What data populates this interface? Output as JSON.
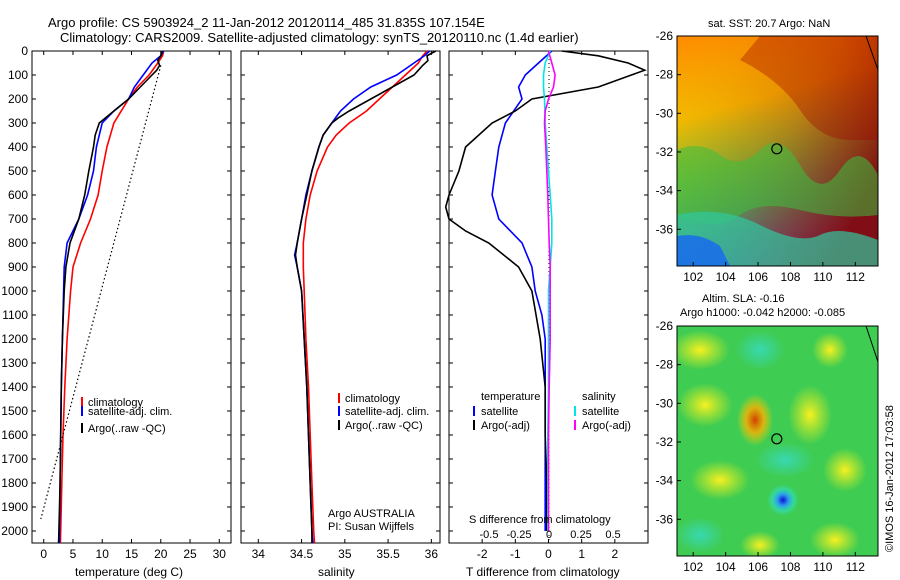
{
  "header": {
    "line1": "Argo profile: CS 5903924_2 11-Jan-2012 20120114_485 31.835S 107.154E",
    "line2": "Climatology: CARS2009. Satellite-adjusted climatology: synTS_20120110.nc (1.4d earlier)"
  },
  "colors": {
    "climatology": "#ff0000",
    "satellite": "#0000ff",
    "argo": "#000000",
    "sat_salinity": "#00e5e5",
    "argo_salinity": "#ff00ff"
  },
  "depth_ticks": [
    "0",
    "100",
    "200",
    "300",
    "400",
    "500",
    "600",
    "700",
    "800",
    "900",
    "1000",
    "1100",
    "1200",
    "1300",
    "1400",
    "1500",
    "1600",
    "1700",
    "1800",
    "1900",
    "2000"
  ],
  "chart_data": [
    {
      "type": "line",
      "panel": "temperature",
      "xlabel": "temperature (deg C)",
      "xlim": [
        -2,
        32
      ],
      "ylim": [
        2050,
        0
      ],
      "x_ticks": [
        "0",
        "5",
        "10",
        "15",
        "20",
        "25",
        "30"
      ],
      "legend": [
        "climatology",
        "satellite-adj. clim.",
        "Argo(..raw -QC)"
      ],
      "series": [
        {
          "name": "climatology",
          "color": "red",
          "depth": [
            0,
            20,
            50,
            100,
            150,
            200,
            300,
            400,
            500,
            600,
            700,
            800,
            900,
            1000,
            1200,
            1400,
            1600,
            1800,
            2000,
            2050
          ],
          "values": [
            20.5,
            20.3,
            19.5,
            18,
            16,
            14.5,
            12,
            10.8,
            10,
            9.3,
            8,
            6.3,
            5,
            4.6,
            4,
            3.6,
            3.3,
            3.1,
            2.9,
            2.85
          ]
        },
        {
          "name": "satellite-adj. clim.",
          "color": "blue",
          "depth": [
            0,
            20,
            50,
            100,
            150,
            200,
            250,
            300,
            400,
            500,
            600,
            700,
            800,
            900,
            1000,
            1200,
            1400,
            1600,
            1800,
            2000,
            2050
          ],
          "values": [
            20.5,
            20,
            18.5,
            17,
            15.5,
            14.5,
            12,
            10,
            9,
            8.5,
            7.5,
            6,
            4,
            3.5,
            3.4,
            3.2,
            3,
            2.9,
            2.8,
            2.7,
            2.7
          ]
        },
        {
          "name": "Argo(..raw -QC)",
          "color": "black",
          "depth": [
            0,
            20,
            40,
            60,
            80,
            100,
            150,
            200,
            250,
            300,
            350,
            400,
            500,
            600,
            700,
            800,
            900,
            1000,
            1200,
            1400,
            1600,
            1800,
            2000,
            2050
          ],
          "values": [
            20.3,
            20,
            19.5,
            19.8,
            19.3,
            18.5,
            16.5,
            14.5,
            12,
            9.5,
            8.8,
            8.5,
            7.7,
            7,
            6,
            4.5,
            3.8,
            3.5,
            3.2,
            3,
            2.9,
            2.8,
            2.6,
            2.55
          ]
        },
        {
          "name": "dotted",
          "color": "black",
          "depth": [
            60,
            1950
          ],
          "values": [
            20,
            -0.5
          ]
        }
      ]
    },
    {
      "type": "line",
      "panel": "salinity",
      "xlabel": "salinity",
      "xlim": [
        33.8,
        36.1
      ],
      "ylim": [
        2050,
        0
      ],
      "x_ticks": [
        "34",
        "34.5",
        "35",
        "35.5",
        "36"
      ],
      "legend": [
        "climatology",
        "satellite-adj. clim.",
        "Argo(..raw -QC)"
      ],
      "annotations": [
        "Argo AUSTRALIA",
        "PI: Susan Wijffels"
      ],
      "series": [
        {
          "name": "climatology",
          "color": "red",
          "depth": [
            0,
            20,
            50,
            100,
            150,
            200,
            250,
            300,
            350,
            400,
            500,
            600,
            700,
            800,
            900,
            1000,
            1200,
            1400,
            1600,
            1800,
            2000,
            2050
          ],
          "values": [
            35.95,
            35.9,
            35.85,
            35.7,
            35.55,
            35.4,
            35.25,
            35.05,
            34.9,
            34.8,
            34.68,
            34.6,
            34.55,
            34.52,
            34.52,
            34.53,
            34.55,
            34.58,
            34.6,
            34.62,
            34.64,
            34.65
          ]
        },
        {
          "name": "satellite-adj. clim.",
          "color": "blue",
          "depth": [
            0,
            20,
            50,
            100,
            150,
            200,
            250,
            300,
            350,
            400,
            500,
            600,
            700,
            800,
            850,
            900,
            1000,
            1200,
            1400,
            1600,
            1800,
            2000,
            2050
          ],
          "values": [
            35.98,
            35.92,
            35.8,
            35.6,
            35.3,
            35.1,
            34.95,
            34.85,
            34.75,
            34.7,
            34.62,
            34.55,
            34.5,
            34.45,
            34.42,
            34.45,
            34.5,
            34.53,
            34.56,
            34.58,
            34.6,
            34.62,
            34.63
          ]
        },
        {
          "name": "Argo(..raw -QC)",
          "color": "black",
          "depth": [
            0,
            20,
            40,
            60,
            80,
            100,
            150,
            200,
            250,
            280,
            300,
            350,
            400,
            500,
            600,
            700,
            800,
            850,
            900,
            1000,
            1200,
            1400,
            1600,
            1800,
            2000,
            2050
          ],
          "values": [
            36.05,
            35.95,
            35.96,
            35.9,
            35.85,
            35.8,
            35.55,
            35.3,
            35.05,
            34.92,
            34.85,
            34.75,
            34.7,
            34.62,
            34.56,
            34.5,
            34.45,
            34.43,
            34.45,
            34.5,
            34.53,
            34.56,
            34.58,
            34.6,
            34.62,
            34.62
          ]
        }
      ]
    },
    {
      "type": "line",
      "panel": "difference",
      "xlabel": "T difference from climatology",
      "xlabel_top": "S difference from climatology",
      "xlim": [
        -3,
        3
      ],
      "ylim": [
        2050,
        0
      ],
      "x_ticks": [
        "-2",
        "-1",
        "0",
        "1",
        "2"
      ],
      "s_ticks": [
        "-0.5",
        "-0.25",
        "0",
        "0.25",
        "0.5"
      ],
      "legend_titles": [
        "temperature",
        "salinity"
      ],
      "legend": [
        "satellite",
        "Argo(-adj)",
        "satellite",
        "Argo(-adj)"
      ],
      "series": [
        {
          "name": "T satellite",
          "color": "blue",
          "depth": [
            0,
            50,
            100,
            150,
            200,
            300,
            400,
            500,
            600,
            700,
            800,
            900,
            1000,
            1100,
            1200,
            1400,
            1600,
            1800,
            2000
          ],
          "values": [
            0.1,
            -0.3,
            -0.7,
            -0.9,
            -0.8,
            -1.3,
            -1.5,
            -1.6,
            -1.7,
            -1.5,
            -0.8,
            -0.5,
            -0.4,
            -0.2,
            -0.1,
            -0.1,
            -0.1,
            -0.1,
            -0.1
          ]
        },
        {
          "name": "T Argo(-adj)",
          "color": "black",
          "depth": [
            0,
            20,
            50,
            80,
            100,
            150,
            200,
            250,
            300,
            400,
            500,
            600,
            650,
            700,
            750,
            800,
            900,
            1000,
            1200,
            1400,
            1600,
            1800,
            2000
          ],
          "values": [
            0.4,
            1.5,
            2.4,
            2.9,
            2.5,
            1.5,
            -0.5,
            -1,
            -1.7,
            -2.5,
            -2.7,
            -3,
            -3.1,
            -3,
            -2.5,
            -1.8,
            -0.9,
            -0.5,
            -0.25,
            -0.1,
            -0.1,
            -0.05,
            -0.05
          ]
        },
        {
          "name": "S satellite",
          "color": "cyan",
          "depth": [
            0,
            50,
            100,
            150,
            200,
            300,
            400,
            500,
            600,
            700,
            800,
            900,
            1000,
            1200,
            1400,
            1600,
            1800,
            2000
          ],
          "values": [
            0.05,
            -0.1,
            -0.15,
            -0.15,
            -0.12,
            -0.1,
            -0.05,
            0,
            0.05,
            0.1,
            0.1,
            0.05,
            0,
            0,
            0,
            -0.02,
            -0.02,
            -0.02
          ]
        },
        {
          "name": "S Argo(-adj)",
          "color": "magenta",
          "depth": [
            0,
            50,
            100,
            150,
            200,
            250,
            300,
            400,
            500,
            600,
            700,
            800,
            900,
            1000,
            1200,
            1400,
            1600,
            1800,
            2000
          ],
          "values": [
            0,
            0.1,
            0.2,
            0.15,
            0,
            -0.1,
            -0.12,
            -0.08,
            -0.05,
            -0.02,
            0,
            0.02,
            0.05,
            0.05,
            0.05,
            0.02,
            0,
            0,
            0
          ]
        }
      ]
    },
    {
      "type": "heatmap",
      "panel": "sst-map",
      "title": "sat. SST: 20.7 Argo: NaN",
      "xlim": [
        101,
        113.4
      ],
      "ylim": [
        -37.9,
        -26
      ],
      "x_ticks": [
        "102",
        "104",
        "106",
        "108",
        "110",
        "112"
      ],
      "y_ticks": [
        "-26",
        "-28",
        "-30",
        "-32",
        "-34",
        "-36"
      ],
      "marker": {
        "lon": 107.154,
        "lat": -31.835
      }
    },
    {
      "type": "heatmap",
      "panel": "sla-map",
      "title_lines": [
        "Altim. SLA: -0.16",
        "Argo h1000: -0.042 h2000: -0.085"
      ],
      "xlim": [
        101,
        113.4
      ],
      "ylim": [
        -37.9,
        -26
      ],
      "x_ticks": [
        "102",
        "104",
        "106",
        "108",
        "110",
        "112"
      ],
      "y_ticks": [
        "-26",
        "-28",
        "-30",
        "-32",
        "-34",
        "-36"
      ],
      "marker": {
        "lon": 107.154,
        "lat": -31.835
      }
    }
  ],
  "credit": "©IMOS 16-Jan-2012 17:03:58"
}
